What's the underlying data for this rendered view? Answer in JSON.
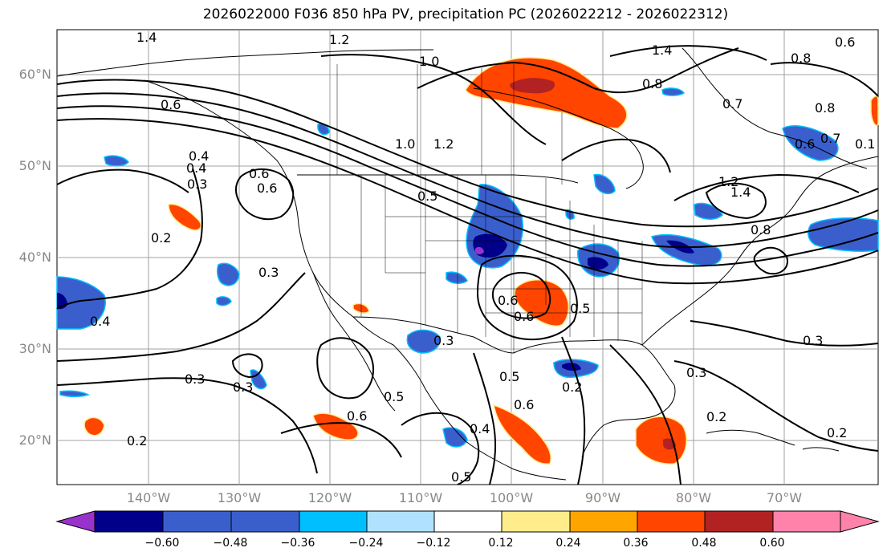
{
  "title": "2026022000 F036 850 hPa PV, precipitation PC (2026022212 - 2026022312)",
  "map": {
    "projection": "lat-lon",
    "lat_labels": [
      "60°N",
      "50°N",
      "40°N",
      "30°N",
      "20°N"
    ],
    "lon_labels": [
      "140°W",
      "130°W",
      "120°W",
      "110°W",
      "100°W",
      "90°W",
      "80°W",
      "70°W"
    ],
    "contour_labels": [
      "1.4",
      "1.2",
      "1.0",
      "0.8",
      "1.4",
      "0.7",
      "0.8",
      "0.6",
      "0.4",
      "0.6",
      "0.4",
      "0.3",
      "0.6",
      "1.0",
      "1.2",
      "0.5",
      "0.2",
      "0.3",
      "0.4",
      "0.3",
      "0.3",
      "0.6",
      "0.3",
      "0.5",
      "0.6",
      "0.5",
      "0.6",
      "0.4",
      "0.5",
      "0.2",
      "0.3",
      "0.2",
      "0.2",
      "0.3",
      "1.2",
      "1.4",
      "0.8",
      "0.6",
      "0.2",
      "0.5",
      "0.6",
      "0.1",
      "0.6",
      "0.8",
      "0.7"
    ]
  },
  "colorbar": {
    "ticks": [
      "−0.60",
      "−0.48",
      "−0.36",
      "−0.24",
      "−0.12",
      "0.12",
      "0.24",
      "0.36",
      "0.48",
      "0.60"
    ],
    "colors": [
      "#9932cc",
      "#00008b",
      "#3a5fcd",
      "#00bfff",
      "#b0e2ff",
      "#ffffff",
      "#ffec8b",
      "#ffa500",
      "#ff4500",
      "#b22222",
      "#ff82ab"
    ]
  },
  "colors": {
    "positive_fill": "#ff4500",
    "negative_fill": "#3a5fcd",
    "contour": "#000000",
    "grid": "#a0a0a0"
  }
}
